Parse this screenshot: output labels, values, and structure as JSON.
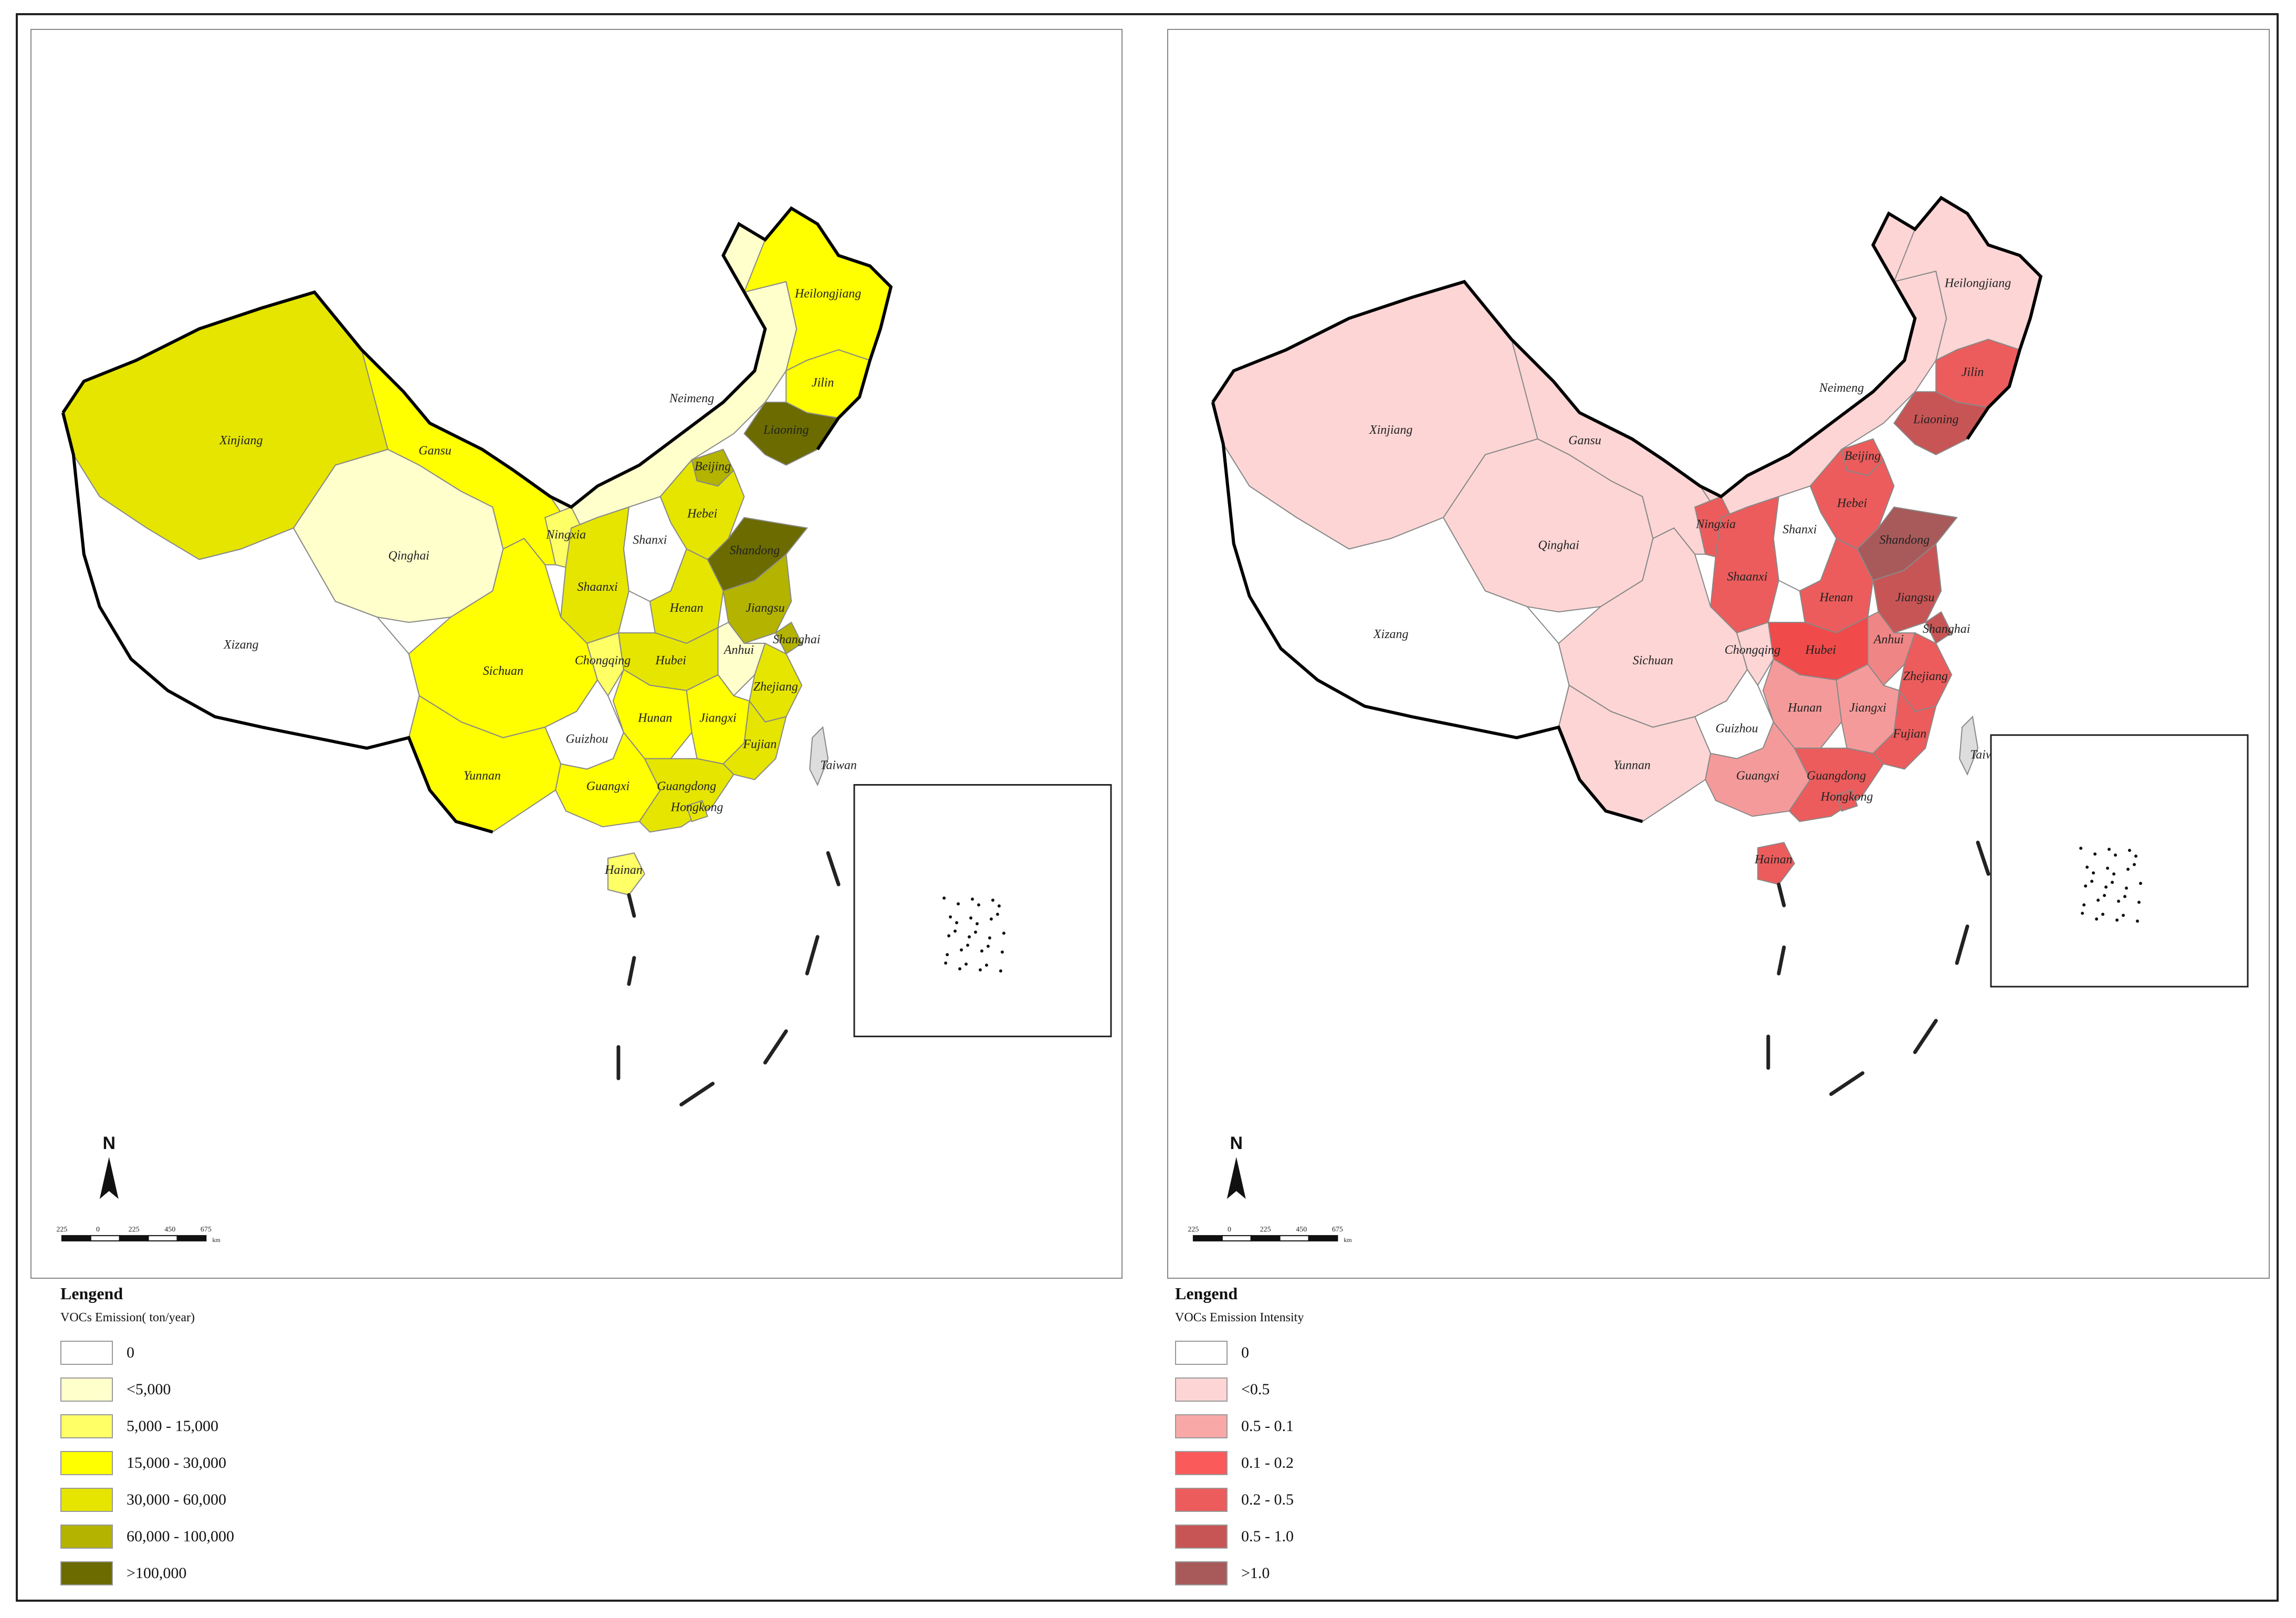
{
  "left_map": {
    "provinces": [
      {
        "name": "Xinjiang",
        "fill": "#E5E500"
      },
      {
        "name": "Xizang",
        "fill": "#FFFFFF"
      },
      {
        "name": "Qinghai",
        "fill": "#FFFFCC"
      },
      {
        "name": "Gansu",
        "fill": "#FFFF00"
      },
      {
        "name": "Neimeng",
        "fill": "#FFFFCC"
      },
      {
        "name": "Heilongjiang",
        "fill": "#FFFF00"
      },
      {
        "name": "Jilin",
        "fill": "#FFFF00"
      },
      {
        "name": "Liaoning",
        "fill": "#6B6B00"
      },
      {
        "name": "Beijing",
        "fill": "#B3B300"
      },
      {
        "name": "Hebei",
        "fill": "#E5E500"
      },
      {
        "name": "Shanxi",
        "fill": "#FFFFFF"
      },
      {
        "name": "Ningxia",
        "fill": "#FFFF66"
      },
      {
        "name": "Shaanxi",
        "fill": "#E5E500"
      },
      {
        "name": "Shandong",
        "fill": "#6B6B00"
      },
      {
        "name": "Henan",
        "fill": "#E5E500"
      },
      {
        "name": "Jiangsu",
        "fill": "#B3B300"
      },
      {
        "name": "Shanghai",
        "fill": "#B3B300"
      },
      {
        "name": "Anhui",
        "fill": "#FFFFCC"
      },
      {
        "name": "Hubei",
        "fill": "#E5E500"
      },
      {
        "name": "Sichuan",
        "fill": "#FFFF00"
      },
      {
        "name": "Chongqing",
        "fill": "#FFFF66"
      },
      {
        "name": "Zhejiang",
        "fill": "#E5E500"
      },
      {
        "name": "Hunan",
        "fill": "#FFFF00"
      },
      {
        "name": "Jiangxi",
        "fill": "#FFFF00"
      },
      {
        "name": "Guizhou",
        "fill": "#FFFFFF"
      },
      {
        "name": "Fujian",
        "fill": "#E5E500"
      },
      {
        "name": "Yunnan",
        "fill": "#FFFF00"
      },
      {
        "name": "Guangxi",
        "fill": "#FFFF00"
      },
      {
        "name": "Guangdong",
        "fill": "#E5E500"
      },
      {
        "name": "Hongkong",
        "fill": "#E5E500"
      },
      {
        "name": "Hainan",
        "fill": "#FFFF66"
      },
      {
        "name": "Taiwan",
        "fill": "#DDDDDD"
      }
    ],
    "scale_ticks": [
      "225",
      "0",
      "225",
      "450",
      "675"
    ],
    "scale_unit": "km",
    "north_label": "N"
  },
  "right_map": {
    "provinces": [
      {
        "name": "Xinjiang",
        "fill": "#FDD5D5"
      },
      {
        "name": "Xizang",
        "fill": "#FFFFFF"
      },
      {
        "name": "Qinghai",
        "fill": "#FDD5D5"
      },
      {
        "name": "Gansu",
        "fill": "#FDD5D5"
      },
      {
        "name": "Neimeng",
        "fill": "#FDD5D5"
      },
      {
        "name": "Heilongjiang",
        "fill": "#FDD5D5"
      },
      {
        "name": "Jilin",
        "fill": "#EC5C5C"
      },
      {
        "name": "Liaoning",
        "fill": "#C85555"
      },
      {
        "name": "Beijing",
        "fill": "#EC5C5C"
      },
      {
        "name": "Hebei",
        "fill": "#EC5C5C"
      },
      {
        "name": "Shanxi",
        "fill": "#FFFFFF"
      },
      {
        "name": "Ningxia",
        "fill": "#EC5C5C"
      },
      {
        "name": "Shaanxi",
        "fill": "#EC5C5C"
      },
      {
        "name": "Shandong",
        "fill": "#A85A5A"
      },
      {
        "name": "Henan",
        "fill": "#EC5C5C"
      },
      {
        "name": "Jiangsu",
        "fill": "#C85555"
      },
      {
        "name": "Shanghai",
        "fill": "#C85555"
      },
      {
        "name": "Anhui",
        "fill": "#F08585"
      },
      {
        "name": "Hubei",
        "fill": "#F04A4A"
      },
      {
        "name": "Sichuan",
        "fill": "#FDD5D5"
      },
      {
        "name": "Chongqing",
        "fill": "#FDD5D5"
      },
      {
        "name": "Zhejiang",
        "fill": "#EC5C5C"
      },
      {
        "name": "Hunan",
        "fill": "#F59A9A"
      },
      {
        "name": "Jiangxi",
        "fill": "#F59A9A"
      },
      {
        "name": "Guizhou",
        "fill": "#FFFFFF"
      },
      {
        "name": "Fujian",
        "fill": "#EC5C5C"
      },
      {
        "name": "Yunnan",
        "fill": "#FDD5D5"
      },
      {
        "name": "Guangxi",
        "fill": "#F59A9A"
      },
      {
        "name": "Guangdong",
        "fill": "#EC5C5C"
      },
      {
        "name": "Hongkong",
        "fill": "#EC5C5C"
      },
      {
        "name": "Hainan",
        "fill": "#EC5C5C"
      },
      {
        "name": "Taiwan",
        "fill": "#DDDDDD"
      }
    ],
    "scale_ticks": [
      "225",
      "0",
      "225",
      "450",
      "675"
    ],
    "scale_unit": "km",
    "north_label": "N"
  },
  "legend_left": {
    "title": "Lengend",
    "subtitle": "VOCs Emission( ton/year)",
    "items": [
      {
        "label": "0",
        "color": "#FFFFFF"
      },
      {
        "label": "<5,000",
        "color": "#FFFFCC"
      },
      {
        "label": "5,000 - 15,000",
        "color": "#FFFF66"
      },
      {
        "label": "15,000 - 30,000",
        "color": "#FFFF00"
      },
      {
        "label": "30,000 - 60,000",
        "color": "#E5E500"
      },
      {
        "label": "60,000 - 100,000",
        "color": "#B3B300"
      },
      {
        "label": ">100,000",
        "color": "#6B6B00"
      }
    ]
  },
  "legend_right": {
    "title": "Lengend",
    "subtitle": "VOCs Emission Intensity",
    "items": [
      {
        "label": "0",
        "color": "#FFFFFF"
      },
      {
        "label": "<0.5",
        "color": "#FDD5D5"
      },
      {
        "label": "0.5 - 0.1",
        "color": "#F9A8A8"
      },
      {
        "label": "0.1 - 0.2",
        "color": "#FA5A5A"
      },
      {
        "label": "0.2 - 0.5",
        "color": "#EC5C5C"
      },
      {
        "label": "0.5 - 1.0",
        "color": "#C85555"
      },
      {
        "label": ">1.0",
        "color": "#A85A5A"
      }
    ]
  }
}
